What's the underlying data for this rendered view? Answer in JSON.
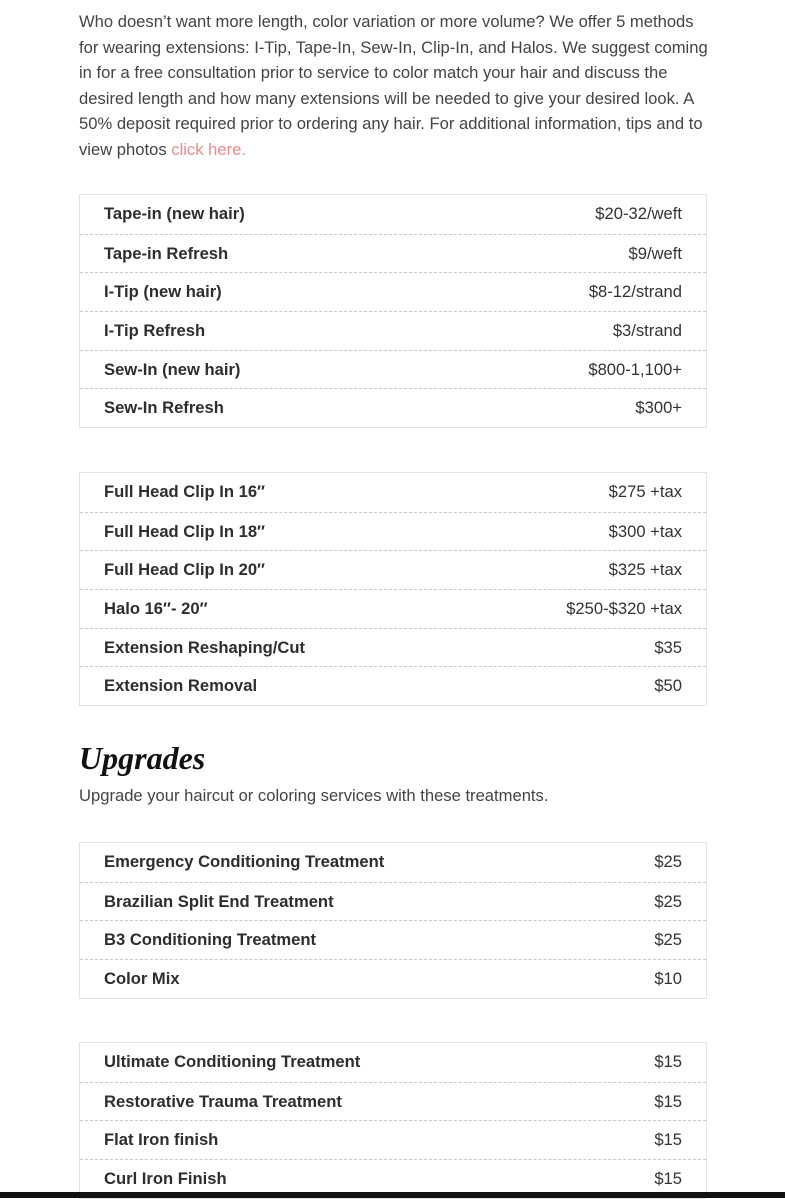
{
  "intro": {
    "text": "Who doesn’t want more length, color variation or more volume? We offer 5 methods for wearing extensions: I-Tip, Tape-In, Sew-In, Clip-In, and Halos. We suggest coming in for a free consultation prior to service to color match your hair and discuss the desired length and how many extensions will be needed to give your desired look. A 50% deposit required prior to ordering any hair. For additional information, tips and to view photos",
    "link": "click here."
  },
  "tables": [
    {
      "rows": [
        {
          "name": "Tape-in (new hair)",
          "price": "$20-32/weft"
        },
        {
          "name": "Tape-in Refresh",
          "price": "$9/weft"
        },
        {
          "name": "I-Tip (new hair)",
          "price": "$8-12/strand"
        },
        {
          "name": "I-Tip Refresh",
          "price": "$3/strand"
        },
        {
          "name": "Sew-In (new hair)",
          "price": "$800-1,100+"
        },
        {
          "name": "Sew-In Refresh",
          "price": "$300+"
        }
      ]
    },
    {
      "rows": [
        {
          "name": "Full Head Clip In 16″",
          "price": "$275 +tax"
        },
        {
          "name": "Full Head Clip In 18″",
          "price": "$300 +tax"
        },
        {
          "name": "Full Head Clip In 20″",
          "price": "$325 +tax"
        },
        {
          "name": "Halo 16″- 20″",
          "price": "$250-$320 +tax"
        },
        {
          "name": "Extension Reshaping/Cut",
          "price": "$35"
        },
        {
          "name": "Extension Removal",
          "price": "$50"
        }
      ]
    },
    {
      "rows": [
        {
          "name": "Emergency Conditioning Treatment",
          "price": "$25"
        },
        {
          "name": "Brazilian Split End Treatment",
          "price": "$25"
        },
        {
          "name": "B3 Conditioning Treatment",
          "price": "$25"
        },
        {
          "name": "Color Mix",
          "price": "$10"
        }
      ]
    },
    {
      "rows": [
        {
          "name": "Ultimate Conditioning Treatment",
          "price": "$15"
        },
        {
          "name": "Restorative Trauma Treatment",
          "price": "$15"
        },
        {
          "name": "Flat Iron finish",
          "price": "$15"
        },
        {
          "name": "Curl Iron Finish",
          "price": "$15"
        }
      ]
    }
  ],
  "upgrades": {
    "title": "Upgrades",
    "subtitle": "Upgrade your haircut or coloring services with these treatments."
  }
}
